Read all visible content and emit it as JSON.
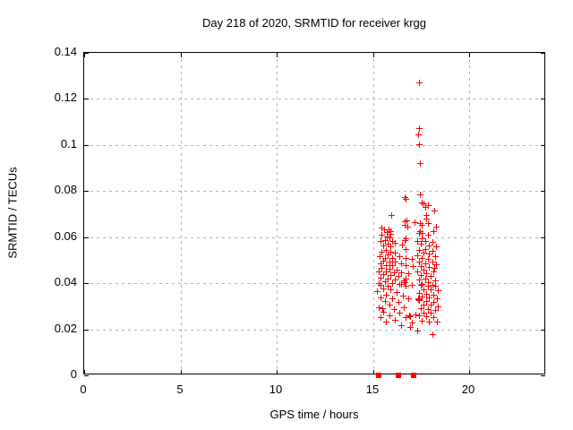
{
  "colors": {
    "background": "#ffffff",
    "axis": "#000000",
    "grid": "#b4b4b4",
    "marker": "#ff0000",
    "text": "#000000"
  },
  "chart_data": {
    "type": "scatter",
    "title": "Day 218 of 2020, SRMTID for receiver krgg",
    "xlabel": "GPS time / hours",
    "ylabel": "SRMTID / TECUs",
    "xlim": [
      0,
      24
    ],
    "ylim": [
      0,
      0.14
    ],
    "xticks": [
      0,
      5,
      10,
      15,
      20
    ],
    "xtick_labels": [
      "0",
      "5",
      "10",
      "15",
      "20"
    ],
    "yticks": [
      0,
      0.02,
      0.04,
      0.06,
      0.08,
      0.1,
      0.12,
      0.14
    ],
    "ytick_labels": [
      "0",
      "0.02",
      "0.04",
      "0.06",
      "0.08",
      "0.1",
      "0.12",
      "0.14"
    ],
    "grid": true,
    "legend_position": "none",
    "marker": "plus",
    "marker_color": "#ff0000",
    "series": [
      {
        "name": "SRMTID",
        "points": [
          [
            17.38,
            0.127
          ],
          [
            17.38,
            0.1075
          ],
          [
            17.35,
            0.1045
          ],
          [
            17.38,
            0.1005
          ],
          [
            17.42,
            0.092
          ],
          [
            17.45,
            0.0784
          ],
          [
            16.67,
            0.0772
          ],
          [
            16.72,
            0.0768
          ],
          [
            17.52,
            0.075
          ],
          [
            17.63,
            0.0745
          ],
          [
            17.84,
            0.0737
          ],
          [
            17.72,
            0.073
          ],
          [
            18.18,
            0.0717
          ],
          [
            15.94,
            0.0698
          ],
          [
            17.79,
            0.0698
          ],
          [
            17.75,
            0.0681
          ],
          [
            16.73,
            0.0672
          ],
          [
            16.67,
            0.0669
          ],
          [
            17.16,
            0.0665
          ],
          [
            17.45,
            0.0661
          ],
          [
            17.84,
            0.0661
          ],
          [
            17.52,
            0.0655
          ],
          [
            16.67,
            0.0652
          ],
          [
            16.77,
            0.0646
          ],
          [
            18.3,
            0.0645
          ],
          [
            15.43,
            0.064
          ],
          [
            15.58,
            0.0633
          ],
          [
            15.81,
            0.0633
          ],
          [
            15.89,
            0.0626
          ],
          [
            18.15,
            0.0626
          ],
          [
            17.45,
            0.0626
          ],
          [
            15.71,
            0.0622
          ],
          [
            17.52,
            0.062
          ],
          [
            17.38,
            0.0619
          ],
          [
            15.93,
            0.0616
          ],
          [
            15.46,
            0.0611
          ],
          [
            17.84,
            0.0609
          ],
          [
            15.74,
            0.0602
          ],
          [
            15.88,
            0.0598
          ],
          [
            16.68,
            0.0595
          ],
          [
            17.53,
            0.0595
          ],
          [
            15.62,
            0.0589
          ],
          [
            16.66,
            0.0588
          ],
          [
            17.3,
            0.0585
          ],
          [
            15.38,
            0.0583
          ],
          [
            16.0,
            0.0583
          ],
          [
            17.7,
            0.0583
          ],
          [
            18.07,
            0.058
          ],
          [
            16.16,
            0.0576
          ],
          [
            15.77,
            0.057
          ],
          [
            17.47,
            0.057
          ],
          [
            16.51,
            0.0567
          ],
          [
            17.93,
            0.0564
          ],
          [
            15.54,
            0.0563
          ],
          [
            15.93,
            0.0559
          ],
          [
            18.3,
            0.0559
          ],
          [
            16.7,
            0.055
          ],
          [
            17.7,
            0.055
          ],
          [
            15.69,
            0.0544
          ],
          [
            17.38,
            0.0544
          ],
          [
            18.07,
            0.0541
          ],
          [
            15.46,
            0.0537
          ],
          [
            15.93,
            0.0537
          ],
          [
            16.16,
            0.0533
          ],
          [
            17.61,
            0.0531
          ],
          [
            17.93,
            0.0528
          ],
          [
            15.77,
            0.0524
          ],
          [
            17.3,
            0.052
          ],
          [
            15.34,
            0.0518
          ],
          [
            16.39,
            0.0518
          ],
          [
            18.23,
            0.0518
          ],
          [
            15.62,
            0.0511
          ],
          [
            16.0,
            0.0511
          ],
          [
            16.7,
            0.0511
          ],
          [
            17.53,
            0.0508
          ],
          [
            17.01,
            0.0505
          ],
          [
            17.84,
            0.0505
          ],
          [
            15.54,
            0.0498
          ],
          [
            15.85,
            0.0494
          ],
          [
            17.38,
            0.0494
          ],
          [
            16.16,
            0.0492
          ],
          [
            18.07,
            0.0492
          ],
          [
            15.38,
            0.0485
          ],
          [
            16.47,
            0.0485
          ],
          [
            17.7,
            0.0485
          ],
          [
            18.3,
            0.0482
          ],
          [
            15.69,
            0.0479
          ],
          [
            16.0,
            0.0477
          ],
          [
            16.7,
            0.0477
          ],
          [
            17.08,
            0.0473
          ],
          [
            17.47,
            0.0473
          ],
          [
            17.93,
            0.0469
          ],
          [
            15.46,
            0.0466
          ],
          [
            18.2,
            0.0465
          ],
          [
            15.85,
            0.0463
          ],
          [
            16.24,
            0.0459
          ],
          [
            17.61,
            0.0459
          ],
          [
            15.31,
            0.0453
          ],
          [
            17.3,
            0.0453
          ],
          [
            15.69,
            0.045
          ],
          [
            18.15,
            0.045
          ],
          [
            16.08,
            0.0447
          ],
          [
            16.47,
            0.0447
          ],
          [
            16.85,
            0.0443
          ],
          [
            17.77,
            0.0443
          ],
          [
            15.54,
            0.0438
          ],
          [
            15.93,
            0.0434
          ],
          [
            17.47,
            0.0434
          ],
          [
            16.32,
            0.043
          ],
          [
            18.01,
            0.043
          ],
          [
            15.38,
            0.0425
          ],
          [
            15.77,
            0.0421
          ],
          [
            16.7,
            0.0421
          ],
          [
            17.7,
            0.0421
          ],
          [
            16.16,
            0.0415
          ],
          [
            17.38,
            0.0415
          ],
          [
            16.62,
            0.0412
          ],
          [
            18.23,
            0.0412
          ],
          [
            15.62,
            0.0408
          ],
          [
            16.64,
            0.0405
          ],
          [
            17.84,
            0.0404
          ],
          [
            15.31,
            0.0401
          ],
          [
            16.0,
            0.0399
          ],
          [
            16.39,
            0.0396
          ],
          [
            16.47,
            0.0395
          ],
          [
            17.53,
            0.0395
          ],
          [
            15.38,
            0.0393
          ],
          [
            17.47,
            0.0393
          ],
          [
            17.01,
            0.0391
          ],
          [
            18.07,
            0.0391
          ],
          [
            15.77,
            0.039
          ],
          [
            16.7,
            0.039
          ],
          [
            17.86,
            0.039
          ],
          [
            18.24,
            0.0387
          ],
          [
            15.54,
            0.0377
          ],
          [
            15.93,
            0.0374
          ],
          [
            17.63,
            0.0374
          ],
          [
            18.01,
            0.0372
          ],
          [
            18.39,
            0.0368
          ],
          [
            15.23,
            0.0364
          ],
          [
            16.24,
            0.0361
          ],
          [
            17.39,
            0.0359
          ],
          [
            17.78,
            0.0355
          ],
          [
            15.69,
            0.0351
          ],
          [
            18.16,
            0.0351
          ],
          [
            16.54,
            0.0348
          ],
          [
            17.55,
            0.0342
          ],
          [
            15.38,
            0.0338
          ],
          [
            17.93,
            0.0338
          ],
          [
            16.0,
            0.0335
          ],
          [
            17.34,
            0.0335
          ],
          [
            18.32,
            0.0335
          ],
          [
            16.85,
            0.0333
          ],
          [
            17.36,
            0.033
          ],
          [
            17.39,
            0.0325
          ],
          [
            15.62,
            0.0322
          ],
          [
            17.78,
            0.0322
          ],
          [
            16.32,
            0.032
          ],
          [
            18.16,
            0.032
          ],
          [
            17.63,
            0.0309
          ],
          [
            15.85,
            0.0307
          ],
          [
            18.01,
            0.0307
          ],
          [
            18.39,
            0.0299
          ],
          [
            15.31,
            0.0296
          ],
          [
            16.62,
            0.0296
          ],
          [
            15.48,
            0.0293
          ],
          [
            17.47,
            0.029
          ],
          [
            15.54,
            0.0277
          ],
          [
            16.08,
            0.0286
          ],
          [
            17.86,
            0.0286
          ],
          [
            18.24,
            0.0283
          ],
          [
            17.63,
            0.0273
          ],
          [
            16.39,
            0.0271
          ],
          [
            18.01,
            0.0271
          ],
          [
            17.22,
            0.0265
          ],
          [
            16.9,
            0.0262
          ],
          [
            15.85,
            0.026
          ],
          [
            17.39,
            0.026
          ],
          [
            16.92,
            0.0255
          ],
          [
            17.78,
            0.0255
          ],
          [
            15.38,
            0.0251
          ],
          [
            16.7,
            0.0251
          ],
          [
            18.16,
            0.0251
          ],
          [
            16.16,
            0.0242
          ],
          [
            17.55,
            0.0238
          ],
          [
            17.93,
            0.0234
          ],
          [
            15.69,
            0.0232
          ],
          [
            18.32,
            0.0232
          ],
          [
            17.01,
            0.0229
          ],
          [
            16.47,
            0.0219
          ],
          [
            16.95,
            0.021
          ],
          [
            17.3,
            0.0195
          ],
          [
            18.09,
            0.018
          ]
        ]
      }
    ],
    "baseline_markers": {
      "shape": "square",
      "y": 0,
      "x": [
        15.31,
        16.31,
        17.12
      ]
    }
  }
}
